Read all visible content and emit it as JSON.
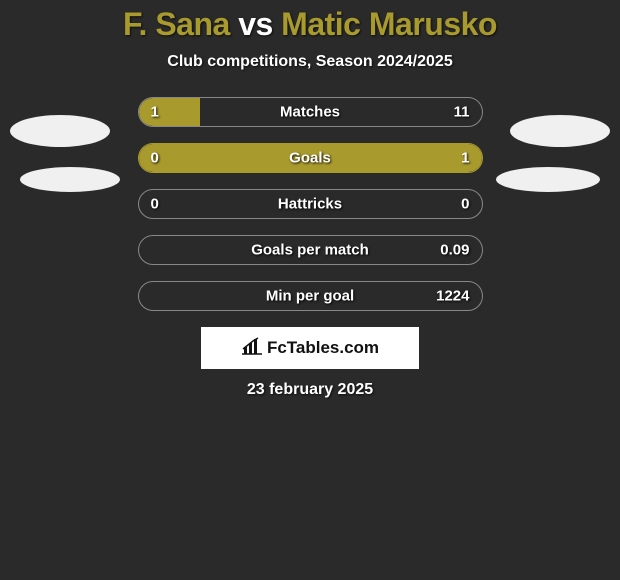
{
  "colors": {
    "background": "#2a2a2a",
    "accent": "#a99a2d",
    "text": "#ffffff",
    "barBorder": "#888888",
    "avatar": "#f0f0f0",
    "logoBg": "#ffffff",
    "logoText": "#111111"
  },
  "title": {
    "part1": "F. Sana",
    "vs": "vs",
    "part2": "Matic Marusko",
    "fontSize": 32,
    "fontWeight": 900
  },
  "subtitle": "Club competitions, Season 2024/2025",
  "stats": [
    {
      "label": "Matches",
      "leftValue": "1",
      "rightValue": "11",
      "leftFillPct": 18,
      "rightFillPct": 0,
      "leftFillColor": "#a99a2d",
      "rightFillColor": null
    },
    {
      "label": "Goals",
      "leftValue": "0",
      "rightValue": "1",
      "leftFillPct": 0,
      "rightFillPct": 0,
      "leftFillColor": null,
      "rightFillColor": null,
      "fullColor": "#a99a2d",
      "noBorder": true
    },
    {
      "label": "Hattricks",
      "leftValue": "0",
      "rightValue": "0",
      "leftFillPct": 0,
      "rightFillPct": 0,
      "leftFillColor": null,
      "rightFillColor": null
    },
    {
      "label": "Goals per match",
      "leftValue": "",
      "rightValue": "0.09",
      "leftFillPct": 0,
      "rightFillPct": 0,
      "leftFillColor": null,
      "rightFillColor": null
    },
    {
      "label": "Min per goal",
      "leftValue": "",
      "rightValue": "1224",
      "leftFillPct": 0,
      "rightFillPct": 0,
      "leftFillColor": null,
      "rightFillColor": null
    }
  ],
  "logo": {
    "text": "FcTables.com",
    "iconName": "bar-chart-icon"
  },
  "date": "23 february 2025"
}
